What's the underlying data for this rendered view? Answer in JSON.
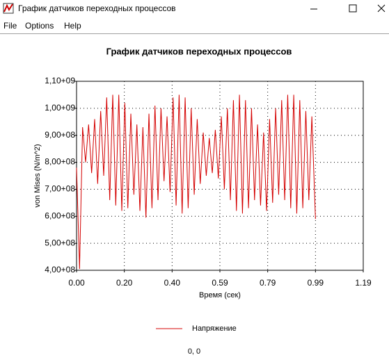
{
  "window": {
    "title": "График датчиков переходных процессов"
  },
  "menu": [
    "File",
    "Options",
    "Help"
  ],
  "status": "0, 0",
  "chart_data": {
    "type": "line",
    "title": "График датчиков переходных процессов",
    "x_label": "Время (сек)",
    "y_label": "von Mises (N/m^2)",
    "x": [
      0,
      0.0125,
      0.025,
      0.0375,
      0.05,
      0.0625,
      0.075,
      0.0875,
      0.1,
      0.1125,
      0.125,
      0.1375,
      0.15,
      0.1625,
      0.175,
      0.1875,
      0.2,
      0.2125,
      0.225,
      0.2375,
      0.25,
      0.2625,
      0.275,
      0.2875,
      0.3,
      0.3125,
      0.325,
      0.3375,
      0.35,
      0.3625,
      0.375,
      0.3875,
      0.4,
      0.4125,
      0.425,
      0.4375,
      0.45,
      0.4625,
      0.475,
      0.4875,
      0.5,
      0.5125,
      0.525,
      0.5375,
      0.55,
      0.5625,
      0.575,
      0.5875,
      0.6,
      0.6125,
      0.625,
      0.6375,
      0.65,
      0.6625,
      0.675,
      0.6875,
      0.7,
      0.7125,
      0.725,
      0.7375,
      0.75,
      0.7625,
      0.775,
      0.7875,
      0.8,
      0.8125,
      0.825,
      0.8375,
      0.85,
      0.8625,
      0.875,
      0.8875,
      0.9,
      0.9125,
      0.925,
      0.9375,
      0.95,
      0.9625,
      0.975,
      0.99
    ],
    "series": [
      {
        "name": "Напряжение",
        "color": "#d40000",
        "values": [
          780000000.0,
          405000000.0,
          930000000.0,
          800000000.0,
          940000000.0,
          760000000.0,
          960000000.0,
          720000000.0,
          990000000.0,
          750000000.0,
          1040000000.0,
          660000000.0,
          1050000000.0,
          640000000.0,
          1050000000.0,
          620000000.0,
          1020000000.0,
          630000000.0,
          980000000.0,
          680000000.0,
          940000000.0,
          620000000.0,
          930000000.0,
          595000000.0,
          980000000.0,
          630000000.0,
          1010000000.0,
          660000000.0,
          1000000000.0,
          730000000.0,
          970000000.0,
          690000000.0,
          1040000000.0,
          640000000.0,
          1050000000.0,
          610000000.0,
          1040000000.0,
          630000000.0,
          1000000000.0,
          680000000.0,
          960000000.0,
          720000000.0,
          910000000.0,
          750000000.0,
          890000000.0,
          760000000.0,
          920000000.0,
          740000000.0,
          970000000.0,
          700000000.0,
          1000000000.0,
          660000000.0,
          1030000000.0,
          620000000.0,
          1050000000.0,
          610000000.0,
          1030000000.0,
          630000000.0,
          1000000000.0,
          660000000.0,
          940000000.0,
          640000000.0,
          910000000.0,
          620000000.0,
          960000000.0,
          650000000.0,
          1000000000.0,
          680000000.0,
          1030000000.0,
          660000000.0,
          1050000000.0,
          630000000.0,
          1050000000.0,
          610000000.0,
          1030000000.0,
          630000000.0,
          990000000.0,
          660000000.0,
          970000000.0,
          590000000.0
        ]
      }
    ],
    "xlim": [
      0,
      1.188
    ],
    "ylim": [
      400000000,
      1100000000
    ],
    "xticks": [
      {
        "value": 0,
        "label": "0.00"
      },
      {
        "value": 0.198,
        "label": "0.20"
      },
      {
        "value": 0.396,
        "label": "0.40"
      },
      {
        "value": 0.594,
        "label": "0.59"
      },
      {
        "value": 0.792,
        "label": "0.79"
      },
      {
        "value": 0.99,
        "label": "0.99"
      },
      {
        "value": 1.188,
        "label": "1.19"
      }
    ],
    "yticks": [
      {
        "value": 400000000,
        "label": "4,00+08"
      },
      {
        "value": 500000000,
        "label": "5,00+08"
      },
      {
        "value": 600000000,
        "label": "6,00+08"
      },
      {
        "value": 700000000,
        "label": "7,00+08"
      },
      {
        "value": 800000000,
        "label": "8,00+08"
      },
      {
        "value": 900000000,
        "label": "9,00+08"
      },
      {
        "value": 1000000000,
        "label": "1,00+09"
      },
      {
        "value": 1100000000,
        "label": "1,10+09"
      }
    ],
    "grid": true,
    "legend": "bottom"
  }
}
